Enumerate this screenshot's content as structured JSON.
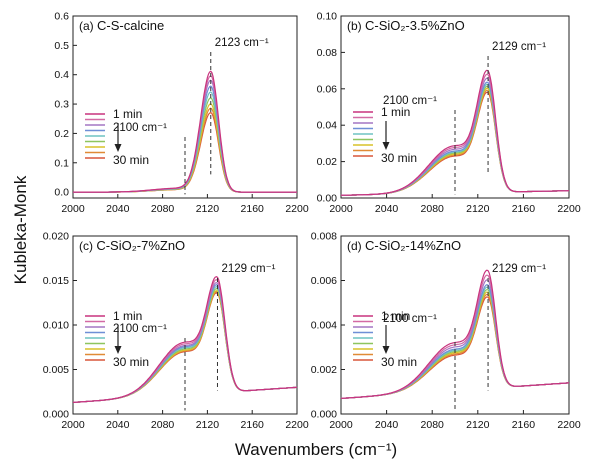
{
  "figure": {
    "ylabel": "Kubleka-Monk",
    "xlabel": "Wavenumbers (cm⁻¹)"
  },
  "legend_colors": [
    "#c8347e",
    "#d36aa4",
    "#a476c4",
    "#6f8fd6",
    "#6ec3c2",
    "#8ec55f",
    "#d9c229",
    "#e08a36",
    "#d9573a"
  ],
  "chart_data": [
    {
      "type": "line",
      "panel": "(a)",
      "title": "C-S-calcine",
      "xlim": [
        2000,
        2200
      ],
      "ylim": [
        -0.02,
        0.6
      ],
      "xticks": [
        2000,
        2040,
        2080,
        2120,
        2160,
        2200
      ],
      "yticks": [
        0.0,
        0.1,
        0.2,
        0.3,
        0.4,
        0.5,
        0.6
      ],
      "ytick_labels": [
        "0.0",
        "0.1",
        "0.2",
        "0.3",
        "0.4",
        "0.5",
        "0.6"
      ],
      "legend": {
        "first": "1 min",
        "last": "30 min",
        "placement": "left"
      },
      "vlines": [
        {
          "x": 2100,
          "label": "2100 cm⁻¹"
        },
        {
          "x": 2123,
          "label": "2123 cm⁻¹"
        }
      ],
      "peak_x": 2123,
      "peak_heights": [
        0.41,
        0.395,
        0.38,
        0.36,
        0.34,
        0.32,
        0.3,
        0.285,
        0.27
      ],
      "baseline": [
        0.0,
        0.0
      ],
      "shoulder_ratio": 0.03
    },
    {
      "type": "line",
      "panel": "(b)",
      "title": "C-SiO₂-3.5%ZnO",
      "xlim": [
        2000,
        2200
      ],
      "ylim": [
        0.0,
        0.1
      ],
      "xticks": [
        2000,
        2040,
        2080,
        2120,
        2160,
        2200
      ],
      "yticks": [
        0.0,
        0.02,
        0.04,
        0.06,
        0.08,
        0.1
      ],
      "ytick_labels": [
        "0.00",
        "0.02",
        "0.04",
        "0.06",
        "0.08",
        "0.10"
      ],
      "legend": {
        "first": "1 min",
        "last": "30 min",
        "placement": "left"
      },
      "vlines": [
        {
          "x": 2100,
          "label": "2100 cm⁻¹"
        },
        {
          "x": 2129,
          "label": "2129 cm⁻¹"
        }
      ],
      "peak_x": 2129,
      "peak_heights": [
        0.067,
        0.065,
        0.063,
        0.061,
        0.06,
        0.059,
        0.058,
        0.057,
        0.056
      ],
      "baseline": [
        0.0015,
        0.004
      ],
      "shoulder_ratio": 0.38
    },
    {
      "type": "line",
      "panel": "(c)",
      "title": "C-SiO₂-7%ZnO",
      "xlim": [
        2000,
        2200
      ],
      "ylim": [
        0.0,
        0.02
      ],
      "xticks": [
        2000,
        2040,
        2080,
        2120,
        2160,
        2200
      ],
      "yticks": [
        0.0,
        0.005,
        0.01,
        0.015,
        0.02
      ],
      "ytick_labels": [
        "0.000",
        "0.005",
        "0.010",
        "0.015",
        "0.020"
      ],
      "legend": {
        "first": "1 min",
        "last": "30 min",
        "placement": "left"
      },
      "vlines": [
        {
          "x": 2100,
          "label": "2100 cm⁻¹"
        },
        {
          "x": 2129,
          "label": "2129 cm⁻¹"
        }
      ],
      "peak_x": 2129,
      "peak_heights": [
        0.0147,
        0.0144,
        0.0141,
        0.0139,
        0.0137,
        0.0135,
        0.0133,
        0.0132,
        0.0131
      ],
      "baseline": [
        0.0013,
        0.003
      ],
      "shoulder_ratio": 0.45
    },
    {
      "type": "line",
      "panel": "(d)",
      "title": "C-SiO₂-14%ZnO",
      "xlim": [
        2000,
        2200
      ],
      "ylim": [
        0.0,
        0.008
      ],
      "xticks": [
        2000,
        2040,
        2080,
        2120,
        2160,
        2200
      ],
      "yticks": [
        0.0,
        0.002,
        0.004,
        0.006,
        0.008
      ],
      "ytick_labels": [
        "0.000",
        "0.002",
        "0.004",
        "0.006",
        "0.008"
      ],
      "legend": {
        "first": "1 min",
        "last": "30 min",
        "placement": "left"
      },
      "vlines": [
        {
          "x": 2100,
          "label": "2100 cm⁻¹"
        },
        {
          "x": 2129,
          "label": "2129 cm⁻¹"
        }
      ],
      "peak_x": 2129,
      "peak_heights": [
        0.0062,
        0.006,
        0.0058,
        0.0056,
        0.0055,
        0.0054,
        0.0053,
        0.0052,
        0.0051
      ],
      "baseline": [
        0.0007,
        0.0014
      ],
      "shoulder_ratio": 0.4
    }
  ]
}
